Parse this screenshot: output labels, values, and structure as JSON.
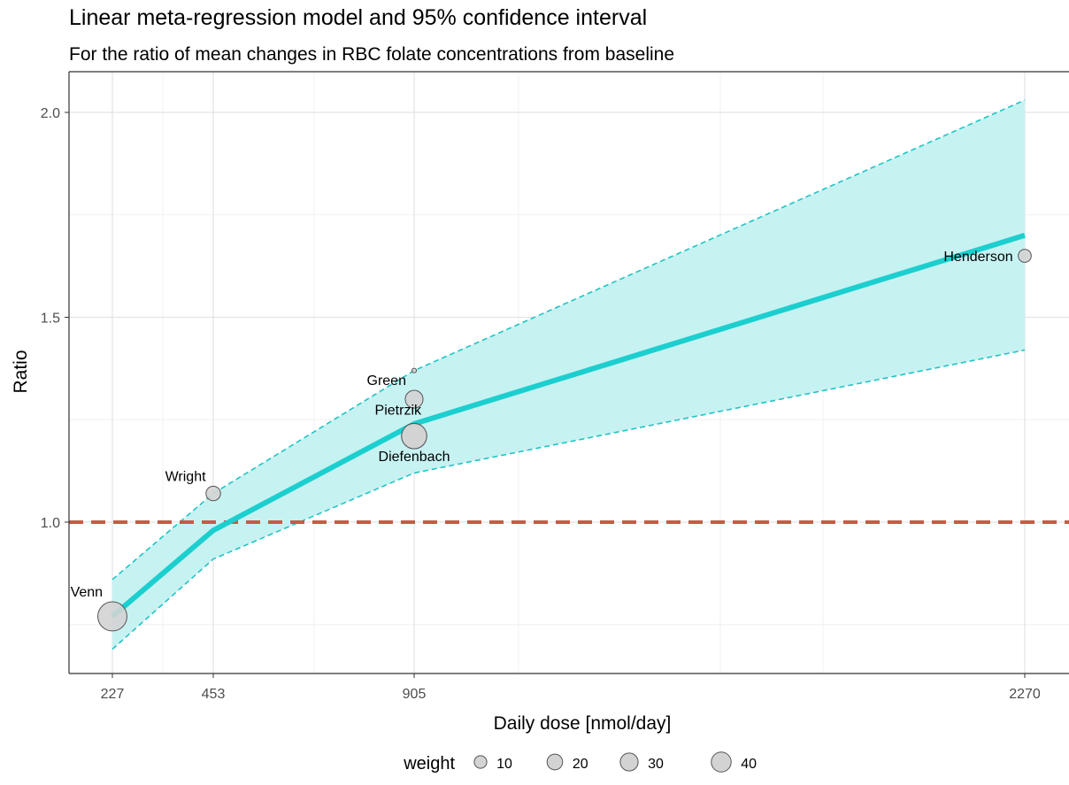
{
  "chart_data": {
    "type": "scatter",
    "title": "Linear meta-regression model and 95% confidence interval",
    "subtitle": "For the ratio of mean changes in RBC folate concentrations from baseline",
    "xlabel": "Daily dose [nmol/day]",
    "ylabel": "Ratio",
    "x_ticks": [
      227,
      453,
      905,
      2270
    ],
    "y_ticks": [
      1.0,
      1.5,
      2.0
    ],
    "xlim": [
      130,
      2370
    ],
    "ylim": [
      0.63,
      2.08
    ],
    "grid": true,
    "reference_line": {
      "y": 1.0,
      "color": "#c75b45",
      "style": "dashed"
    },
    "regression_line": {
      "color": "#1ccfcf",
      "x": [
        227,
        453,
        905,
        2270
      ],
      "y": [
        0.77,
        0.98,
        1.24,
        1.7
      ]
    },
    "confidence_band": {
      "color": "#c7f2f2",
      "x": [
        227,
        453,
        905,
        2270
      ],
      "lower": [
        0.69,
        0.91,
        1.12,
        1.42
      ],
      "upper": [
        0.86,
        1.07,
        1.37,
        2.03
      ]
    },
    "points": [
      {
        "label": "Venn",
        "x": 227,
        "y": 0.77,
        "weight": 40,
        "label_pos": "upper-left"
      },
      {
        "label": "Wright",
        "x": 453,
        "y": 1.07,
        "weight": 10,
        "label_pos": "upper-left"
      },
      {
        "label": "Green",
        "x": 905,
        "y": 1.3,
        "weight": 15,
        "label_pos": "upper-left"
      },
      {
        "label": "",
        "x": 905,
        "y": 1.37,
        "weight": 1,
        "label_pos": "none"
      },
      {
        "label": "Pietrzik",
        "x": 905,
        "y": 1.21,
        "weight": 30,
        "label_pos": "upper-left"
      },
      {
        "label": "Diefenbach",
        "x": 905,
        "y": 1.21,
        "weight": 30,
        "label_pos": "below"
      },
      {
        "label": "Henderson",
        "x": 2270,
        "y": 1.65,
        "weight": 8,
        "label_pos": "left"
      }
    ],
    "legend": {
      "title": "weight",
      "position": "bottom",
      "values": [
        10,
        20,
        30,
        40
      ]
    }
  }
}
